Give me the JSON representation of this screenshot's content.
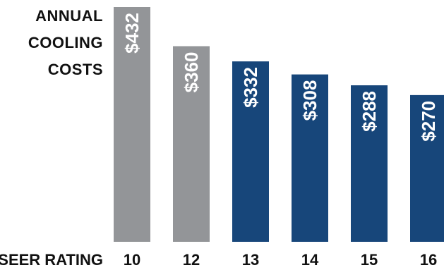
{
  "chart_data": {
    "type": "bar",
    "ylabel_lines": [
      "ANNUAL",
      "COOLING",
      "COSTS"
    ],
    "xlabel": "SEER RATING",
    "categories": [
      "10",
      "12",
      "13",
      "14",
      "15",
      "16"
    ],
    "values": [
      432,
      360,
      332,
      308,
      288,
      270
    ],
    "value_labels": [
      "$432",
      "$360",
      "$332",
      "$308",
      "$288",
      "$270"
    ],
    "bar_colors": [
      "#939598",
      "#939598",
      "#17467a",
      "#17467a",
      "#17467a",
      "#17467a"
    ],
    "ylim": [
      0,
      432
    ],
    "grid": false,
    "legend": "none"
  }
}
